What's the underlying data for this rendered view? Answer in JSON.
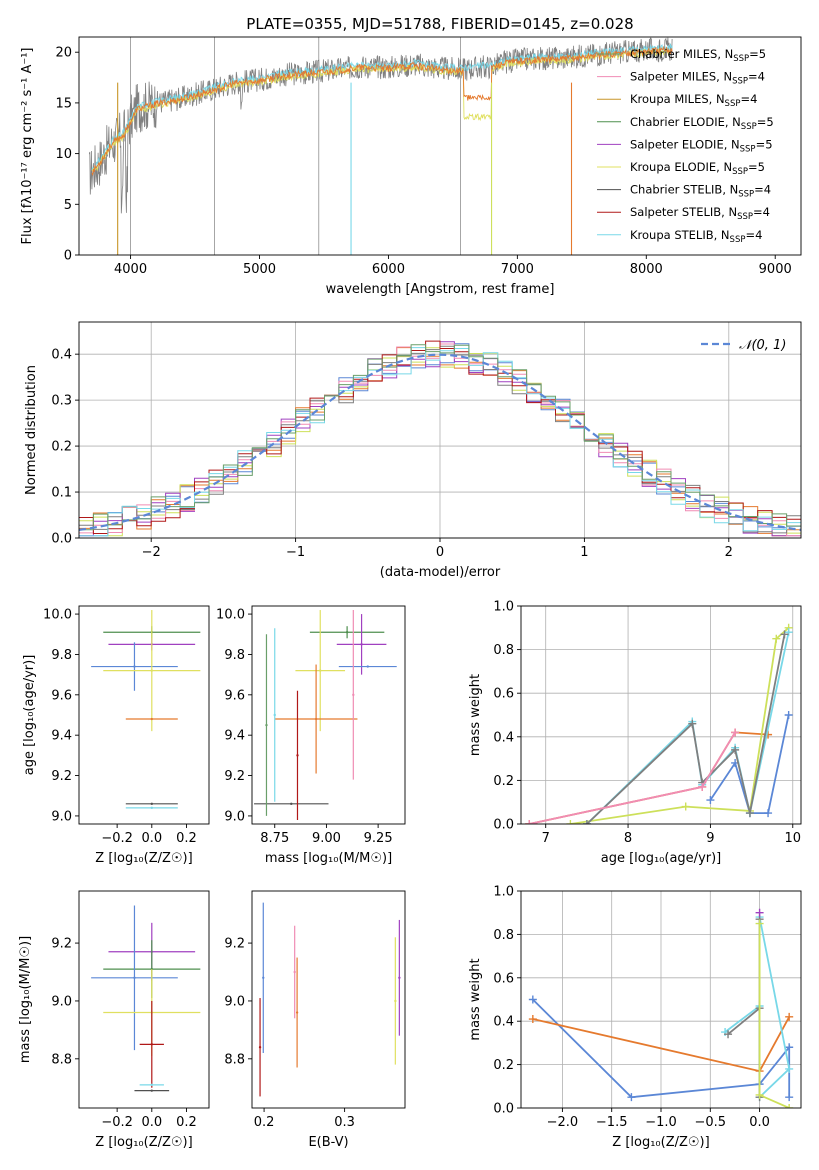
{
  "colors": {
    "Chabrier MILES": "#6a9f6a",
    "Salpeter MILES": "#f08cb4",
    "Kroupa MILES": "#c89628",
    "Chabrier ELODIE": "#4f8f4f",
    "Salpeter ELODIE": "#a040c0",
    "Kroupa ELODIE": "#e0e060",
    "Chabrier STELIB": "#505050",
    "Salpeter STELIB": "#b01818",
    "Kroupa STELIB": "#78d8e8",
    "blue": "#5b87d6",
    "orange": "#e57a2e",
    "yellowgreen": "#cde05a",
    "gray": "#7f7f7f"
  },
  "chart_data": [
    {
      "id": "spectrum",
      "type": "line",
      "title": "PLATE=0355, MJD=51788, FIBERID=0145, z=0.028",
      "xlabel": "wavelength [Angstrom, rest frame]",
      "ylabel": "Flux [fλ10⁻¹⁷ erg cm⁻² s⁻¹ A⁻¹]",
      "xlim": [
        3600,
        9200
      ],
      "ylim": [
        0,
        21.5
      ],
      "xticks": [
        "4000",
        "5000",
        "6000",
        "7000",
        "8000",
        "9000"
      ],
      "yticks": [
        "0",
        "5",
        "10",
        "15",
        "20"
      ],
      "grid": false,
      "legend_position": "right",
      "legend": [
        {
          "label": "Chabrier MILES, N",
          "sub": "SSP",
          "suffix": "=5"
        },
        {
          "label": "Salpeter MILES, N",
          "sub": "SSP",
          "suffix": "=4"
        },
        {
          "label": "Kroupa MILES, N",
          "sub": "SSP",
          "suffix": "=4"
        },
        {
          "label": "Chabrier ELODIE, N",
          "sub": "SSP",
          "suffix": "=5"
        },
        {
          "label": "Salpeter ELODIE, N",
          "sub": "SSP",
          "suffix": "=5"
        },
        {
          "label": "Kroupa ELODIE, N",
          "sub": "SSP",
          "suffix": "=5"
        },
        {
          "label": "Chabrier STELIB, N",
          "sub": "SSP",
          "suffix": "=4"
        },
        {
          "label": "Salpeter STELIB, N",
          "sub": "SSP",
          "suffix": "=4"
        },
        {
          "label": "Kroupa STELIB, N",
          "sub": "SSP",
          "suffix": "=4"
        }
      ],
      "continuum": [
        [
          3680,
          8.0
        ],
        [
          3750,
          9.0
        ],
        [
          3850,
          11.0
        ],
        [
          3950,
          12.0
        ],
        [
          4050,
          14.5
        ],
        [
          4200,
          15.0
        ],
        [
          4400,
          15.5
        ],
        [
          4600,
          16.2
        ],
        [
          4800,
          17.0
        ],
        [
          5000,
          17.3
        ],
        [
          5200,
          17.8
        ],
        [
          5400,
          18.0
        ],
        [
          5600,
          18.3
        ],
        [
          5800,
          18.6
        ],
        [
          6000,
          18.5
        ],
        [
          6200,
          18.8
        ],
        [
          6400,
          18.4
        ],
        [
          6550,
          18.3
        ],
        [
          6700,
          18.5
        ],
        [
          6800,
          18.6
        ],
        [
          6900,
          19.0
        ],
        [
          7000,
          19.2
        ],
        [
          7150,
          19.4
        ],
        [
          7300,
          19.4
        ],
        [
          7420,
          19.5
        ],
        [
          7600,
          19.8
        ],
        [
          7800,
          20.0
        ],
        [
          8000,
          20.2
        ],
        [
          8200,
          20.3
        ]
      ],
      "model_dips": [
        {
          "from": 6550,
          "to": 6600,
          "depth_orange": 16.0,
          "depth_yellow": 14.5
        },
        {
          "from": 6600,
          "to": 6800,
          "depth_orange": 16.5,
          "depth_yellow": 14.8
        }
      ]
    },
    {
      "id": "residuals",
      "type": "histogram",
      "xlabel": "(data-model)/error",
      "ylabel": "Normed distribution",
      "xlim": [
        -2.5,
        2.5
      ],
      "ylim": [
        0,
        0.47
      ],
      "xticks": [
        "−2",
        "−1",
        "0",
        "1",
        "2"
      ],
      "yticks": [
        "0.0",
        "0.1",
        "0.2",
        "0.3",
        "0.4"
      ],
      "grid": true,
      "legend": [
        {
          "label": "𝒩(0, 1)",
          "style": "dashed",
          "color": "#5b87d6"
        }
      ],
      "legend_position": "top-right",
      "bin_width": 0.1,
      "bin_start": -2.5
    },
    {
      "id": "age-vs-Z",
      "type": "errorbar",
      "xlabel": "Z [log₁₀(Z/Z☉)]",
      "ylabel": "age  [log₁₀(age/yr)]",
      "xlim": [
        -0.42,
        0.33
      ],
      "ylim": [
        8.96,
        10.04
      ],
      "xticks": [
        "−0.2",
        "0.0",
        "0.2"
      ],
      "yticks": [
        "9.0",
        "9.2",
        "9.4",
        "9.6",
        "9.8",
        "10.0"
      ],
      "points": [
        {
          "series": "Chabrier ELODIE",
          "x": 0.0,
          "xerr": 0.28,
          "y": 9.91,
          "yerr": 0.03
        },
        {
          "series": "Salpeter ELODIE",
          "x": 0.0,
          "xerr": 0.25,
          "y": 9.85,
          "yerr": 0.03
        },
        {
          "series": "blue",
          "x": -0.1,
          "xerr": 0.25,
          "y": 9.74,
          "yerr": 0.12
        },
        {
          "series": "Kroupa ELODIE",
          "x": 0.0,
          "xerr": 0.28,
          "y": 9.72,
          "yerr": 0.3
        },
        {
          "series": "orange",
          "x": 0.0,
          "xerr": 0.15,
          "y": 9.48,
          "yerr": 0.0
        },
        {
          "series": "Chabrier STELIB",
          "x": 0.0,
          "xerr": 0.15,
          "y": 9.06,
          "yerr": 0.0
        },
        {
          "series": "Kroupa STELIB",
          "x": 0.0,
          "xerr": 0.15,
          "y": 9.04,
          "yerr": 0.0
        }
      ]
    },
    {
      "id": "age-vs-mass",
      "type": "errorbar",
      "xlabel": "mass [log₁₀(M/M☉)]",
      "ylabel": "",
      "xlim": [
        8.64,
        9.38
      ],
      "ylim": [
        8.96,
        10.04
      ],
      "xticks": [
        "8.75",
        "9.00",
        "9.25"
      ],
      "yticks": [
        "9.0",
        "9.2",
        "9.4",
        "9.6",
        "9.8",
        "10.0"
      ],
      "points": [
        {
          "series": "Chabrier ELODIE",
          "x": 9.1,
          "xerr": 0.18,
          "y": 9.91,
          "yerr": 0.03
        },
        {
          "series": "Salpeter ELODIE",
          "x": 9.17,
          "xerr": 0.12,
          "y": 9.85,
          "yerr": 0.15
        },
        {
          "series": "blue",
          "x": 9.2,
          "xerr": 0.14,
          "y": 9.74,
          "yerr": 0.0
        },
        {
          "series": "Kroupa ELODIE",
          "x": 8.97,
          "xerr": 0.12,
          "y": 9.72,
          "yerr": 0.3
        },
        {
          "series": "orange",
          "x": 8.95,
          "xerr": 0.2,
          "y": 9.48,
          "yerr": 0.27
        },
        {
          "series": "Chabrier STELIB",
          "x": 8.83,
          "xerr": 0.18,
          "y": 9.06,
          "yerr": 0.0
        },
        {
          "series": "Salpeter STELIB",
          "x": 8.86,
          "xerr": 0.0,
          "y": 9.3,
          "yerr": 0.32
        },
        {
          "series": "Kroupa STELIB",
          "x": 8.75,
          "xerr": 0.0,
          "y": 9.5,
          "yerr": 0.43
        },
        {
          "series": "Chabrier MILES",
          "x": 8.71,
          "xerr": 0.0,
          "y": 9.45,
          "yerr": 0.45
        },
        {
          "series": "Salpeter MILES",
          "x": 9.13,
          "xerr": 0.0,
          "y": 9.6,
          "yerr": 0.42
        }
      ]
    },
    {
      "id": "weight-vs-age",
      "type": "line",
      "xlabel": "age  [log₁₀(age/yr)]",
      "ylabel": "mass weight",
      "xlim": [
        6.7,
        10.1
      ],
      "ylim": [
        0,
        1.0
      ],
      "xticks": [
        "7",
        "8",
        "9",
        "10"
      ],
      "yticks": [
        "0.0",
        "0.2",
        "0.4",
        "0.6",
        "0.8",
        "1.0"
      ],
      "grid": true,
      "series": [
        {
          "name": "blue",
          "x": [
            9.0,
            9.3,
            9.48,
            9.7,
            9.95
          ],
          "y": [
            0.11,
            0.28,
            0.05,
            0.05,
            0.5
          ]
        },
        {
          "name": "orange",
          "x": [
            6.8,
            8.9,
            9.3,
            9.7
          ],
          "y": [
            0.0,
            0.17,
            0.42,
            0.41
          ]
        },
        {
          "name": "yellowgreen",
          "x": [
            7.3,
            8.7,
            9.48,
            9.8,
            9.95
          ],
          "y": [
            0.0,
            0.08,
            0.06,
            0.85,
            0.9
          ]
        },
        {
          "name": "Kroupa STELIB",
          "x": [
            7.5,
            8.78,
            8.9,
            9.3,
            9.48,
            9.95
          ],
          "y": [
            0.0,
            0.47,
            0.18,
            0.35,
            0.05,
            0.88
          ]
        },
        {
          "name": "gray",
          "x": [
            7.5,
            8.78,
            8.9,
            9.3,
            9.48,
            9.9
          ],
          "y": [
            0.0,
            0.46,
            0.19,
            0.34,
            0.05,
            0.87
          ]
        },
        {
          "name": "Salpeter MILES",
          "x": [
            6.8,
            8.9,
            9.3
          ],
          "y": [
            0.0,
            0.17,
            0.42
          ]
        }
      ]
    },
    {
      "id": "mass-vs-Z",
      "type": "errorbar",
      "xlabel": "Z [log₁₀(Z/Z☉)]",
      "ylabel": "mass [log₁₀(M/M☉)]",
      "xlim": [
        -0.42,
        0.33
      ],
      "ylim": [
        8.63,
        9.38
      ],
      "xticks": [
        "−0.2",
        "0.0",
        "0.2"
      ],
      "yticks": [
        "8.8",
        "9.0",
        "9.2"
      ],
      "points": [
        {
          "series": "Salpeter ELODIE",
          "x": 0.0,
          "xerr": 0.25,
          "y": 9.17,
          "yerr": 0.1
        },
        {
          "series": "Chabrier ELODIE",
          "x": 0.0,
          "xerr": 0.28,
          "y": 9.11,
          "yerr": 0.1
        },
        {
          "series": "blue",
          "x": -0.1,
          "xerr": 0.25,
          "y": 9.08,
          "yerr": 0.25
        },
        {
          "series": "Kroupa ELODIE",
          "x": 0.0,
          "xerr": 0.28,
          "y": 8.96,
          "yerr": 0.15
        },
        {
          "series": "Salpeter STELIB",
          "x": 0.0,
          "xerr": 0.07,
          "y": 8.85,
          "yerr": 0.15
        },
        {
          "series": "Kroupa STELIB",
          "x": 0.0,
          "xerr": 0.07,
          "y": 8.71,
          "yerr": 0.0
        },
        {
          "series": "Chabrier STELIB",
          "x": 0.0,
          "xerr": 0.1,
          "y": 8.69,
          "yerr": 0.0
        }
      ]
    },
    {
      "id": "mass-vs-ebv",
      "type": "errorbar",
      "xlabel": "E(B-V)",
      "ylabel": "",
      "xlim": [
        0.185,
        0.375
      ],
      "ylim": [
        8.63,
        9.38
      ],
      "xticks": [
        "0.2",
        "0.3"
      ],
      "yticks": [
        "8.8",
        "9.0",
        "9.2"
      ],
      "points": [
        {
          "series": "blue",
          "x": 0.199,
          "y": 9.08,
          "yerr": 0.26
        },
        {
          "series": "Salpeter STELIB",
          "x": 0.195,
          "y": 8.84,
          "yerr": 0.17
        },
        {
          "series": "Salpeter MILES",
          "x": 0.238,
          "y": 9.1,
          "yerr": 0.16
        },
        {
          "series": "orange",
          "x": 0.241,
          "y": 8.96,
          "yerr": 0.19
        },
        {
          "series": "Kroupa ELODIE",
          "x": 0.363,
          "y": 9.0,
          "yerr": 0.22
        },
        {
          "series": "Salpeter ELODIE",
          "x": 0.368,
          "y": 9.08,
          "yerr": 0.2
        }
      ]
    },
    {
      "id": "weight-vs-Z",
      "type": "line",
      "xlabel": "Z [log₁₀(Z/Z☉)]",
      "ylabel": "mass weight",
      "xlim": [
        -2.42,
        0.42
      ],
      "ylim": [
        0,
        1.0
      ],
      "xticks": [
        "−2.0",
        "−1.5",
        "−1.0",
        "−0.5",
        "0.0"
      ],
      "yticks": [
        "0.0",
        "0.2",
        "0.4",
        "0.6",
        "0.8",
        "1.0"
      ],
      "grid": true,
      "series": [
        {
          "name": "blue",
          "x": [
            -2.3,
            -1.3,
            0.0,
            0.3,
            0.3
          ],
          "y": [
            0.5,
            0.05,
            0.11,
            0.28,
            0.05
          ]
        },
        {
          "name": "orange",
          "x": [
            -2.3,
            0.0,
            0.3
          ],
          "y": [
            0.41,
            0.17,
            0.42
          ]
        },
        {
          "name": "Kroupa STELIB",
          "x": [
            -0.35,
            0.0,
            0.0,
            0.3,
            0.0
          ],
          "y": [
            0.35,
            0.47,
            0.05,
            0.18,
            0.88
          ]
        },
        {
          "name": "gray",
          "x": [
            -0.32,
            0.0,
            0.0,
            0.0
          ],
          "y": [
            0.34,
            0.46,
            0.05,
            0.87
          ]
        },
        {
          "name": "yellowgreen",
          "x": [
            0.0,
            0.0,
            0.3
          ],
          "y": [
            0.85,
            0.06,
            0.0
          ]
        },
        {
          "name": "Salpeter ELODIE",
          "x": [
            0.0
          ],
          "y": [
            0.9
          ]
        }
      ]
    }
  ]
}
